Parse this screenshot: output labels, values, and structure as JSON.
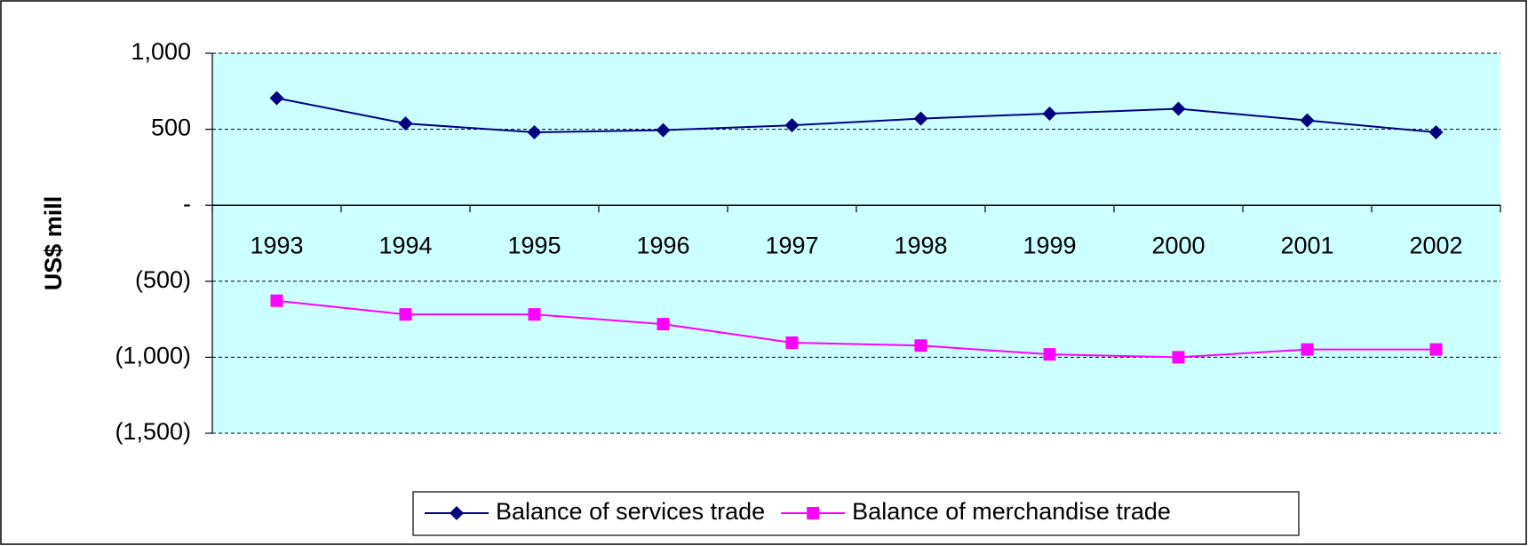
{
  "chart_data": {
    "type": "line",
    "y_label": "US$ mill",
    "categories": [
      "1993",
      "1994",
      "1995",
      "1996",
      "1997",
      "1998",
      "1999",
      "2000",
      "2001",
      "2002"
    ],
    "series": [
      {
        "name": "Balance of services trade",
        "color": "#000080",
        "marker": "diamond",
        "values": [
          705,
          538,
          480,
          494,
          526,
          570,
          603,
          635,
          558,
          480
        ]
      },
      {
        "name": "Balance of merchandise trade",
        "color": "#ff00ff",
        "marker": "square",
        "values": [
          -628,
          -718,
          -718,
          -782,
          -904,
          -923,
          -981,
          -1000,
          -949,
          -949
        ]
      }
    ],
    "ylim": [
      -1500,
      1000
    ],
    "yticks": [
      {
        "value": 1000,
        "label": "1,000"
      },
      500,
      {
        "value": 0,
        "label": "-"
      },
      {
        "value": -500,
        "label": "(500)"
      },
      {
        "value": -1000,
        "label": "(1,000)"
      },
      {
        "value": -1500,
        "label": "(1,500)"
      }
    ],
    "grid": true,
    "plot_background": "#ccffff",
    "legend": "bottom"
  }
}
